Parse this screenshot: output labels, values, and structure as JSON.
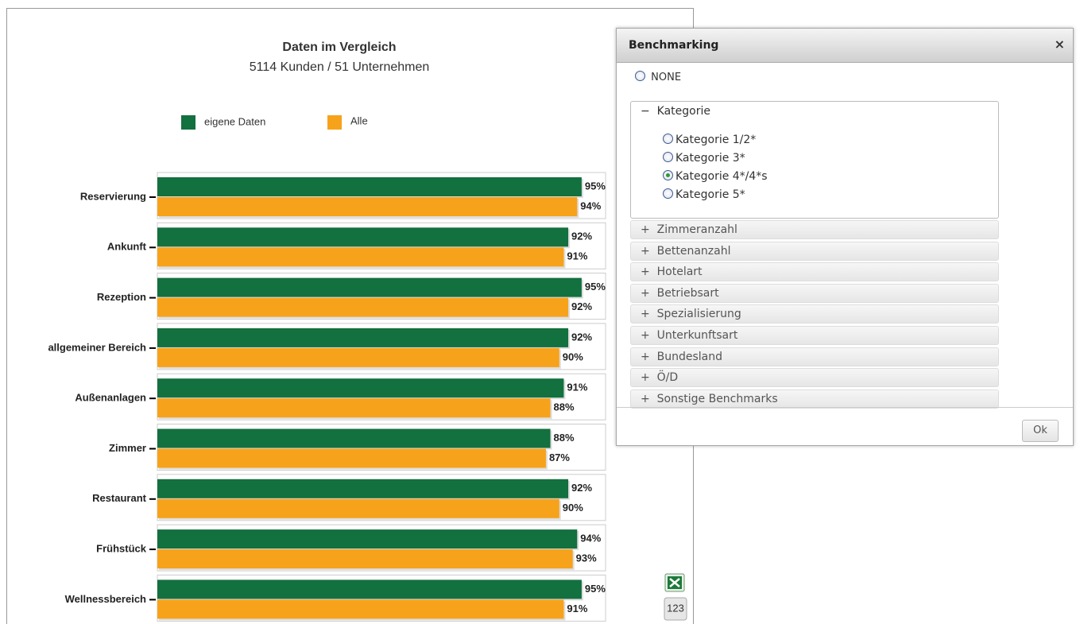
{
  "chart_data": {
    "type": "hbar",
    "title": "Daten im Vergleich",
    "subtitle": "5114 Kunden / 51 Unternehmen",
    "categories": [
      "Reservierung",
      "Ankunft",
      "Rezeption",
      "allgemeiner Bereich",
      "Außenanlagen",
      "Zimmer",
      "Restaurant",
      "Frühstück",
      "Wellnessbereich"
    ],
    "series": [
      {
        "name": "eigene Daten",
        "color": "#13703f",
        "values": [
          95,
          92,
          95,
          92,
          91,
          88,
          92,
          94,
          95
        ],
        "value_labels": [
          "95%",
          "92%",
          "95%",
          "92%",
          "91%",
          "88%",
          "92%",
          "94%",
          "95%"
        ]
      },
      {
        "name": "Alle",
        "color": "#f7a21b",
        "values": [
          94,
          91,
          92,
          90,
          88,
          87,
          90,
          93,
          91
        ],
        "value_labels": [
          "94%",
          "91%",
          "92%",
          "90%",
          "88%",
          "87%",
          "90%",
          "93%",
          "91%"
        ]
      }
    ],
    "xlim": [
      0,
      100
    ],
    "legend": "top"
  },
  "toolbar": {
    "numbers_button": "123"
  },
  "dialog": {
    "title": "Benchmarking",
    "close": "×",
    "none_option": "NONE",
    "collapse_sign": "−",
    "expand_sign": "+",
    "expanded_section": {
      "title": "Kategorie",
      "options": [
        "Kategorie 1/2*",
        "Kategorie 3*",
        "Kategorie 4*/4*s",
        "Kategorie 5*"
      ],
      "selected": 2
    },
    "sections": [
      "Zimmeranzahl",
      "Bettenanzahl",
      "Hotelart",
      "Betriebsart",
      "Spezialisierung",
      "Unterkunftsart",
      "Bundesland",
      "Ö/D",
      "Sonstige Benchmarks"
    ],
    "ok": "Ok"
  }
}
